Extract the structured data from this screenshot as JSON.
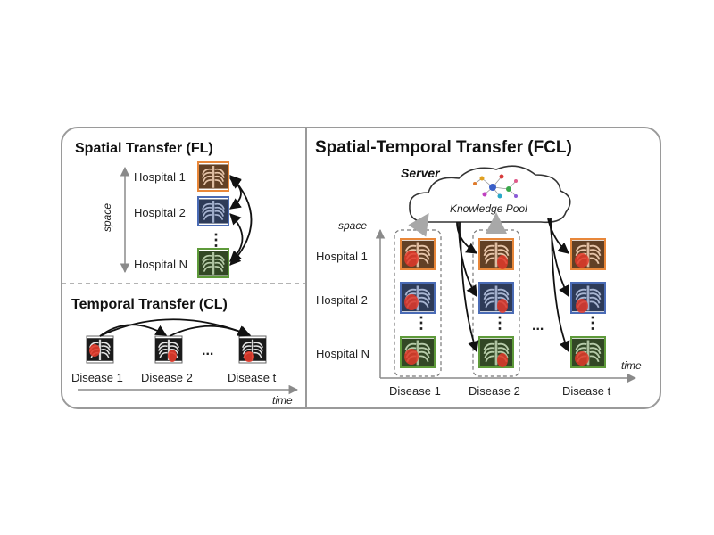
{
  "fl": {
    "title": "Spatial Transfer (FL)",
    "axis_label": "space",
    "hospitals": [
      "Hospital 1",
      "Hospital 2",
      "Hospital N"
    ],
    "ellipsis": "⋮"
  },
  "cl": {
    "title": "Temporal Transfer (CL)",
    "axis_label": "time",
    "diseases": [
      "Disease 1",
      "Disease 2",
      "Disease t"
    ],
    "ellipsis": "..."
  },
  "fcl": {
    "title": "Spatial-Temporal Transfer (FCL)",
    "server_label": "Server",
    "pool_label": "Knowledge Pool",
    "space_label": "space",
    "time_label": "time",
    "hospitals": [
      "Hospital 1",
      "Hospital 2",
      "Hospital N"
    ],
    "diseases": [
      "Disease 1",
      "Disease 2",
      "Disease t"
    ],
    "h_ellipsis": "...",
    "v_ellipsis": "⋮"
  },
  "colors": {
    "hospital_1": "#e8873a",
    "hospital_2": "#4a6bb5",
    "hospital_n": "#5e9a3a",
    "disease_mark": "#e23a2a",
    "arrow_gray": "#a8a8a8",
    "frame_gray": "#9a9a9a"
  }
}
